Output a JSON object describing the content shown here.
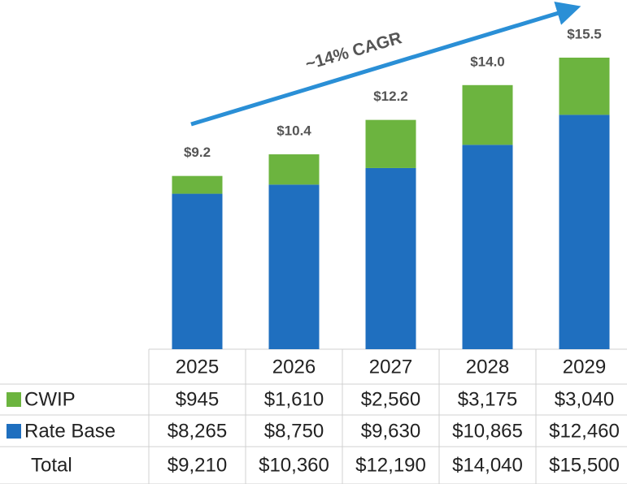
{
  "chart_data": {
    "type": "stacked_bar",
    "annotation": "~14% CAGR",
    "categories": [
      "2025",
      "2026",
      "2027",
      "2028",
      "2029"
    ],
    "series": [
      {
        "name": "CWIP",
        "color": "#6cb43f",
        "values": [
          945,
          1610,
          2560,
          3175,
          3040
        ],
        "value_labels": [
          "$945",
          "$1,610",
          "$2,560",
          "$3,175",
          "$3,040"
        ]
      },
      {
        "name": "Rate Base",
        "color": "#1f6fbf",
        "values": [
          8265,
          8750,
          9630,
          10865,
          12460
        ],
        "value_labels": [
          "$8,265",
          "$8,750",
          "$9,630",
          "$10,865",
          "$12,460"
        ]
      }
    ],
    "totals": {
      "name": "Total",
      "values": [
        9210,
        10360,
        12190,
        14040,
        15500
      ],
      "value_labels": [
        "$9,210",
        "$10,360",
        "$12,190",
        "$14,040",
        "$15,500"
      ],
      "top_labels": [
        "$9.2",
        "$10.4",
        "$12.2",
        "$14.0",
        "$15.5"
      ]
    },
    "ylim": [
      0,
      16000
    ]
  }
}
